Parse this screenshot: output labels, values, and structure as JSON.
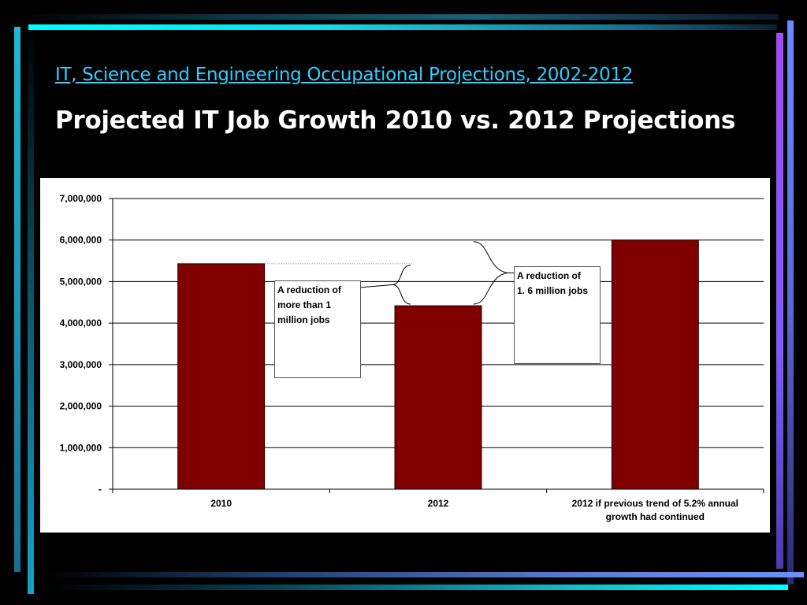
{
  "slide": {
    "subtitle": "IT, Science and Engineering Occupational Projections, 2002-2012",
    "title": "Projected IT Job Growth 2010 vs. 2012 Projections"
  },
  "chart_data": {
    "type": "bar",
    "categories": [
      "2010",
      "2012",
      "2012 if previous trend of 5.2% annual growth had continued"
    ],
    "values": [
      5430000,
      4420000,
      6000000
    ],
    "ylim": [
      0,
      7000000
    ],
    "ytick_values": [
      0,
      1000000,
      2000000,
      3000000,
      4000000,
      5000000,
      6000000,
      7000000
    ],
    "ytick_labels": [
      "-",
      "1,000,000",
      "2,000,000",
      "3,000,000",
      "4,000,000",
      "5,000,000",
      "6,000,000",
      "7,000,000"
    ],
    "category_label_lines": [
      [
        "2010"
      ],
      [
        "2012"
      ],
      [
        "2012 if previous trend of 5.2% annual",
        "growth had continued"
      ]
    ],
    "bar_color": "#800000",
    "grid": true,
    "annotations": [
      {
        "text": "A reduction of more than 1 million jobs"
      },
      {
        "text": "A reduction of 1. 6 million jobs"
      }
    ],
    "xlabel": "",
    "ylabel": ""
  },
  "notes": {
    "note1_lines": [
      "A reduction of",
      "more than 1",
      "million jobs"
    ],
    "note2_lines": [
      "A reduction of",
      "1. 6 million jobs"
    ]
  },
  "colors": {
    "background": "#000000",
    "subtitle": "#33ccff",
    "title": "#ffffff",
    "bar": "#800000"
  }
}
